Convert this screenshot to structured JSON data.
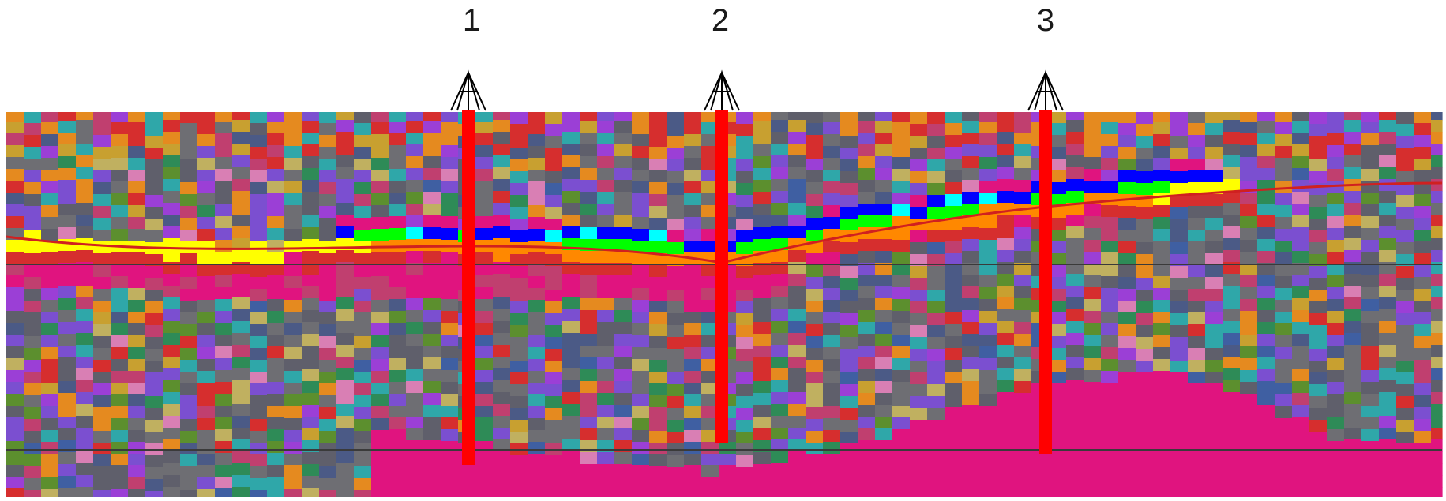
{
  "wells": [
    {
      "label": "1",
      "icon": "derrick-icon"
    },
    {
      "label": "2",
      "icon": "derrick-icon"
    },
    {
      "label": "3",
      "icon": "derrick-icon"
    }
  ],
  "colors": {
    "well_track": "#ff0000",
    "horizon_line": "#d02020",
    "reference_line": "#3a3a3a",
    "derrick": "#000000",
    "facies_palette": [
      "#5f5f6b",
      "#6e6e73",
      "#4b5a86",
      "#3f5fa2",
      "#2fa7a9",
      "#2e8b57",
      "#5c8f2e",
      "#9b3fd6",
      "#7b4fd0",
      "#c03f6f",
      "#d62e2e",
      "#e58a1f",
      "#c8a030",
      "#d97fb4",
      "#c0b060",
      "#e0147f",
      "#ffff00",
      "#ff8800",
      "#0000ff",
      "#00ff00",
      "#00ffff"
    ]
  }
}
